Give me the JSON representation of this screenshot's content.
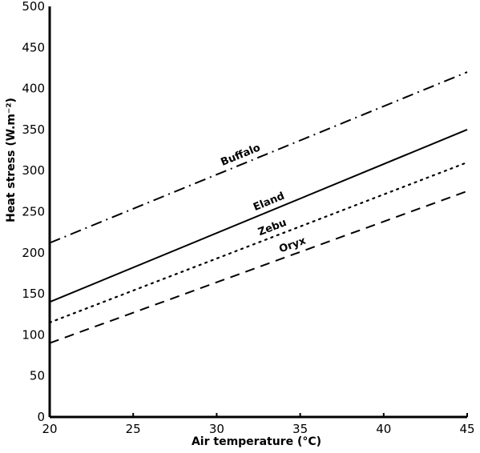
{
  "chart_data": {
    "type": "line",
    "title": "",
    "xlabel": "Air temperature (°C)",
    "ylabel": "Heat stress (W.m⁻²)",
    "xlim": [
      20,
      45
    ],
    "ylim": [
      0,
      500
    ],
    "x_ticks": [
      "20",
      "25",
      "30",
      "35",
      "40",
      "45"
    ],
    "y_ticks": [
      "0",
      "50",
      "100",
      "150",
      "200",
      "250",
      "300",
      "350",
      "400",
      "450",
      "500"
    ],
    "grid": false,
    "legend": "none (lines labelled directly)",
    "series": [
      {
        "name": "Buffalo",
        "style": "dash-dot",
        "x": [
          20,
          45
        ],
        "y": [
          212,
          420
        ]
      },
      {
        "name": "Eland",
        "style": "solid",
        "x": [
          20,
          45
        ],
        "y": [
          140,
          350
        ]
      },
      {
        "name": "Zebu",
        "style": "dotted",
        "x": [
          20,
          45
        ],
        "y": [
          115,
          310
        ]
      },
      {
        "name": "Oryx",
        "style": "dashed",
        "x": [
          20,
          45
        ],
        "y": [
          90,
          275
        ]
      }
    ]
  }
}
